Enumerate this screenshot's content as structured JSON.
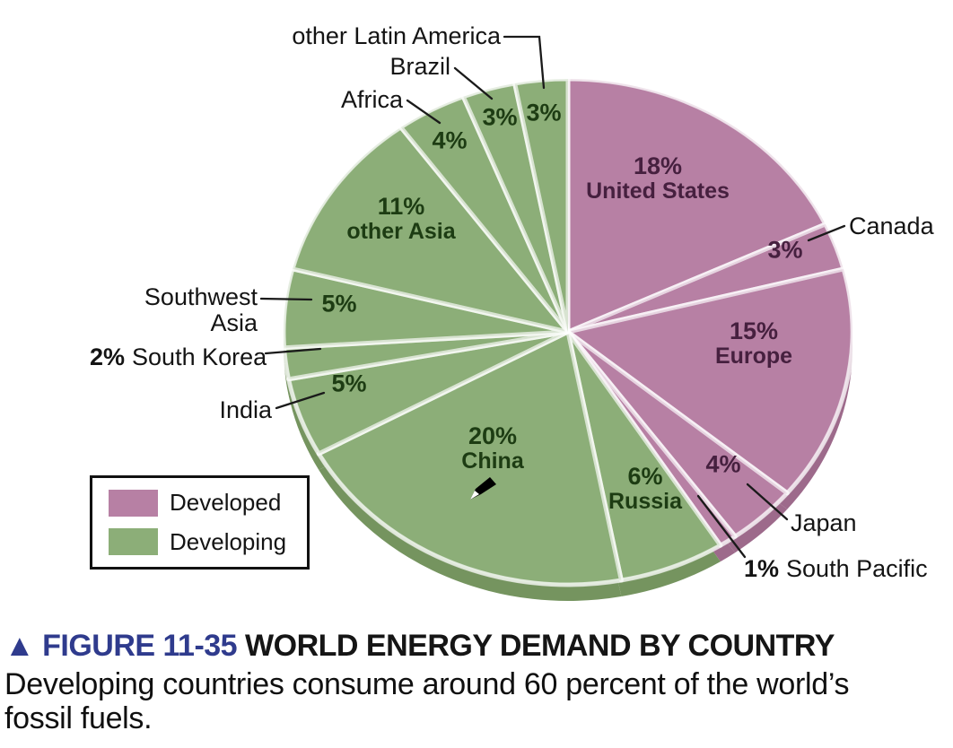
{
  "figure": {
    "marker": "▲",
    "label": "FIGURE 11-35",
    "title": "WORLD ENERGY DEMAND BY COUNTRY",
    "caption_line1": "Developing countries consume around 60 percent of the world’s",
    "caption_line2": "fossil fuels."
  },
  "legend": {
    "position": "bottom-left",
    "items": [
      {
        "label": "Developed",
        "color": "#b780a4"
      },
      {
        "label": "Developing",
        "color": "#8cae78"
      }
    ]
  },
  "cursor": {
    "icon": "pencil-cursor"
  },
  "chart_data": {
    "type": "pie",
    "title": "WORLD ENERGY DEMAND BY COUNTRY",
    "units": "percent",
    "start_angle_deg": 0,
    "direction": "clockwise",
    "legend_position": "bottom-left",
    "colors": {
      "developed": "#b780a4",
      "developed_dark": "#9d6a8b",
      "developed_text": "#46203f",
      "developing": "#8cae78",
      "developing_dark": "#75945f",
      "developing_text": "#1d3c13",
      "figure_label": "#2f3b8d",
      "leader_line": "#1a1a1a"
    },
    "slices": [
      {
        "name": "United States",
        "pct": "18%",
        "value": 18,
        "group": "developed",
        "label_placement": "inside"
      },
      {
        "name": "Canada",
        "pct": "3%",
        "value": 3,
        "group": "developed",
        "label_placement": "outside"
      },
      {
        "name": "Europe",
        "pct": "15%",
        "value": 15,
        "group": "developed",
        "label_placement": "inside"
      },
      {
        "name": "Japan",
        "pct": "4%",
        "value": 4,
        "group": "developed",
        "label_placement": "outside"
      },
      {
        "name": "South Pacific",
        "pct": "1%",
        "value": 1,
        "group": "developed",
        "label_placement": "outside"
      },
      {
        "name": "Russia",
        "pct": "6%",
        "value": 6,
        "group": "developing",
        "label_placement": "inside"
      },
      {
        "name": "China",
        "pct": "20%",
        "value": 20,
        "group": "developing",
        "label_placement": "inside"
      },
      {
        "name": "India",
        "pct": "5%",
        "value": 5,
        "group": "developing",
        "label_placement": "outside"
      },
      {
        "name": "South Korea",
        "pct": "2%",
        "value": 2,
        "group": "developing",
        "label_placement": "outside"
      },
      {
        "name": "Southwest Asia",
        "pct": "5%",
        "value": 5,
        "group": "developing",
        "label_placement": "outside"
      },
      {
        "name": "other Asia",
        "pct": "11%",
        "value": 11,
        "group": "developing",
        "label_placement": "inside"
      },
      {
        "name": "Africa",
        "pct": "4%",
        "value": 4,
        "group": "developing",
        "label_placement": "outside"
      },
      {
        "name": "Brazil",
        "pct": "3%",
        "value": 3,
        "group": "developing",
        "label_placement": "outside"
      },
      {
        "name": "other Latin America",
        "pct": "3%",
        "value": 3,
        "group": "developing",
        "label_placement": "outside"
      }
    ]
  }
}
